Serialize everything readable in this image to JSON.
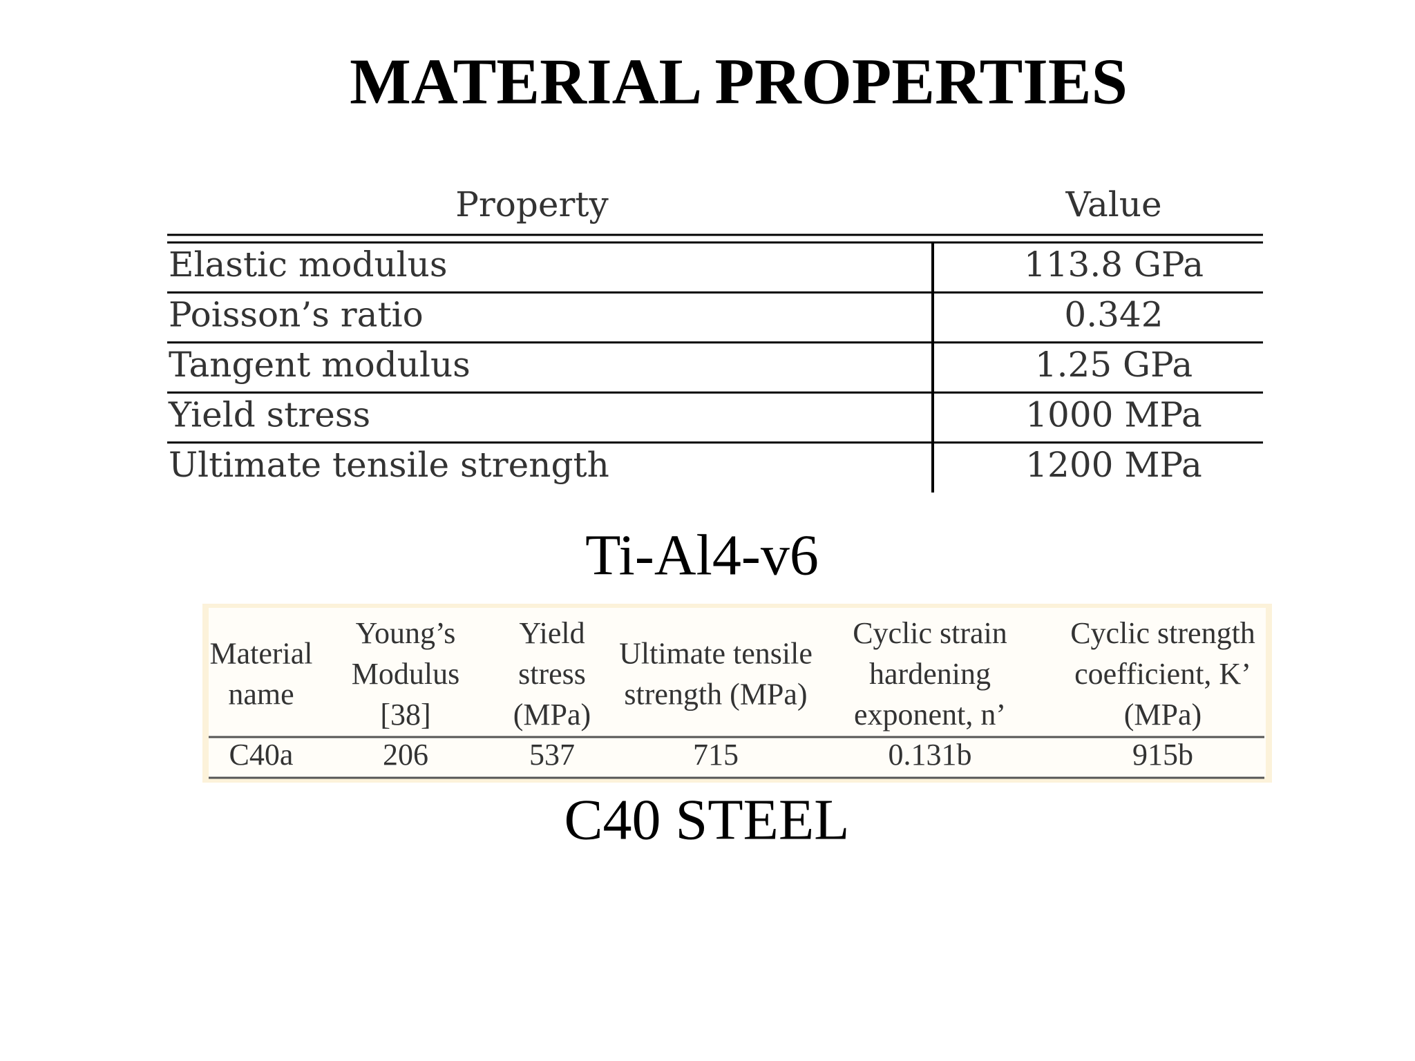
{
  "header": {
    "title": "MATERIAL PROPERTIES"
  },
  "table1": {
    "columns": [
      "Property",
      "Value"
    ],
    "rows": [
      [
        "Elastic modulus",
        "113.8 GPa"
      ],
      [
        "Poisson’s ratio",
        "0.342"
      ],
      [
        "Tangent modulus",
        "1.25 GPa"
      ],
      [
        "Yield stress",
        "1000 MPa"
      ],
      [
        "Ultimate tensile strength",
        "1200 MPa"
      ]
    ],
    "caption": "Ti-Al4-v6"
  },
  "table2": {
    "columns": [
      [
        "Material",
        "name"
      ],
      [
        "Young’s",
        "Modulus",
        "[38]"
      ],
      [
        "Yield",
        "stress",
        "(MPa)"
      ],
      [
        "Ultimate tensile",
        "strength   (MPa)"
      ],
      [
        "Cyclic strain",
        "hardening",
        "exponent, n’"
      ],
      [
        "Cyclic strength",
        "coefficient, K’",
        "(MPa)"
      ]
    ],
    "rows": [
      [
        "C40a",
        "206",
        "537",
        "715",
        "0.131b",
        "915b"
      ]
    ],
    "caption": "C40 STEEL"
  }
}
